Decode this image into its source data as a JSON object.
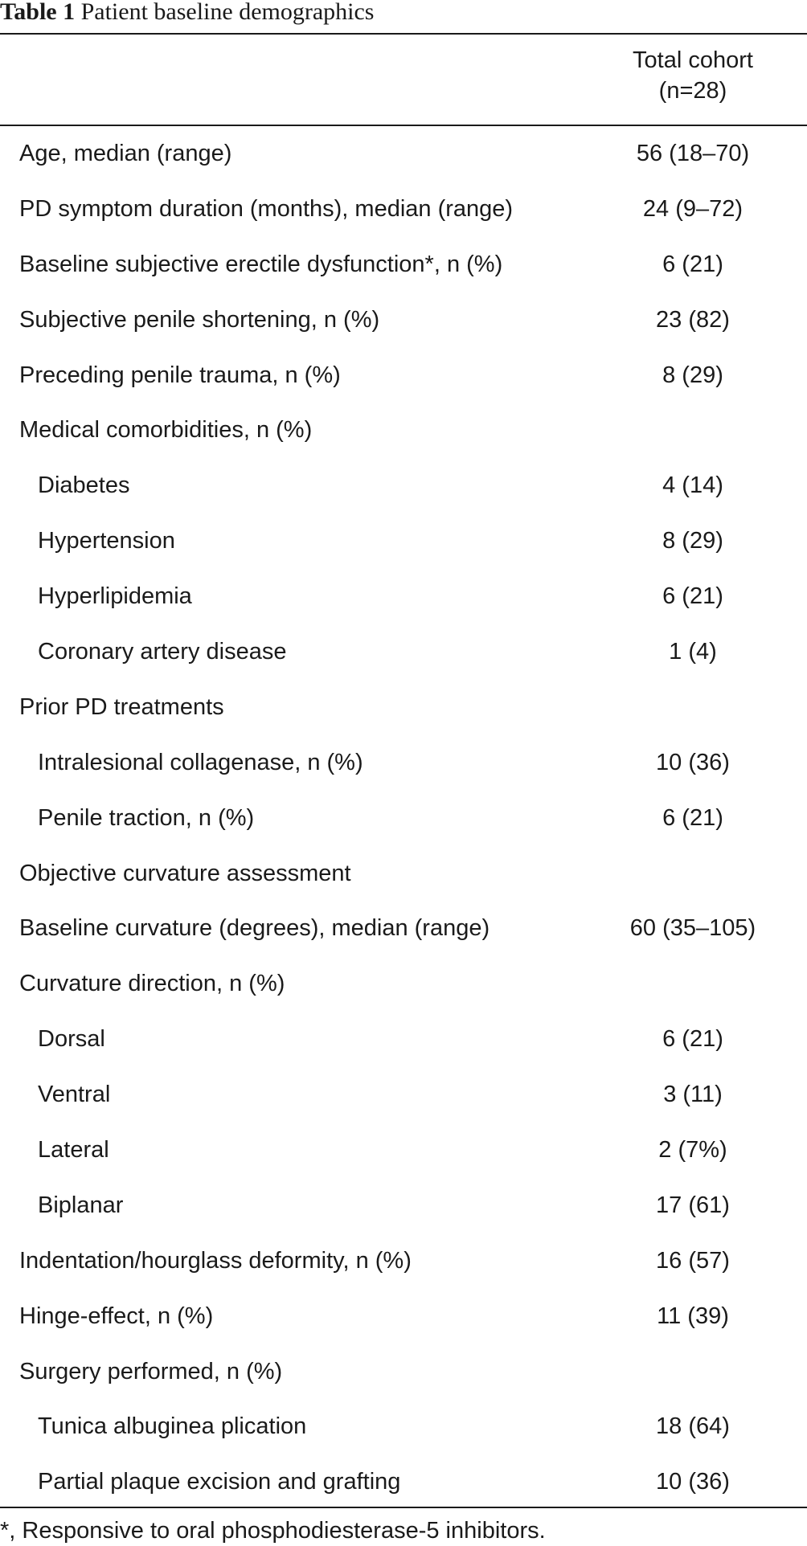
{
  "caption": {
    "label": "Table 1",
    "title": "Patient baseline demographics"
  },
  "header": {
    "column_line1": "Total cohort",
    "column_line2": "(n=28)"
  },
  "rows": [
    {
      "label": "Age, median (range)",
      "value": "56 (18–70)",
      "indent": false
    },
    {
      "label": "PD symptom duration (months), median (range)",
      "value": "24 (9–72)",
      "indent": false
    },
    {
      "label": "Baseline subjective erectile dysfunction*, n (%)",
      "value": "6 (21)",
      "indent": false
    },
    {
      "label": "Subjective penile shortening, n (%)",
      "value": "23 (82)",
      "indent": false
    },
    {
      "label": "Preceding penile trauma, n (%)",
      "value": "8 (29)",
      "indent": false
    },
    {
      "label": "Medical comorbidities, n (%)",
      "value": "",
      "indent": false
    },
    {
      "label": "Diabetes",
      "value": "4 (14)",
      "indent": true
    },
    {
      "label": "Hypertension",
      "value": "8 (29)",
      "indent": true
    },
    {
      "label": "Hyperlipidemia",
      "value": "6 (21)",
      "indent": true
    },
    {
      "label": "Coronary artery disease",
      "value": "1 (4)",
      "indent": true
    },
    {
      "label": "Prior PD treatments",
      "value": "",
      "indent": false
    },
    {
      "label": "Intralesional collagenase, n (%)",
      "value": "10 (36)",
      "indent": true
    },
    {
      "label": "Penile traction, n (%)",
      "value": "6 (21)",
      "indent": true
    },
    {
      "label": "Objective curvature assessment",
      "value": "",
      "indent": false
    },
    {
      "label": "Baseline curvature (degrees), median (range)",
      "value": "60 (35–105)",
      "indent": false
    },
    {
      "label": "Curvature direction, n (%)",
      "value": "",
      "indent": false
    },
    {
      "label": "Dorsal",
      "value": "6 (21)",
      "indent": true
    },
    {
      "label": "Ventral",
      "value": "3 (11)",
      "indent": true
    },
    {
      "label": "Lateral",
      "value": "2 (7%)",
      "indent": true
    },
    {
      "label": "Biplanar",
      "value": "17 (61)",
      "indent": true
    },
    {
      "label": "Indentation/hourglass deformity, n (%)",
      "value": "16 (57)",
      "indent": false
    },
    {
      "label": "Hinge-effect, n (%)",
      "value": "11 (39)",
      "indent": false
    },
    {
      "label": "Surgery performed, n (%)",
      "value": "",
      "indent": false
    },
    {
      "label": "Tunica albuginea plication",
      "value": "18 (64)",
      "indent": true
    },
    {
      "label": "Partial plaque excision and grafting",
      "value": "10 (36)",
      "indent": true
    }
  ],
  "footnote": "*, Responsive to oral phosphodiesterase-5 inhibitors."
}
